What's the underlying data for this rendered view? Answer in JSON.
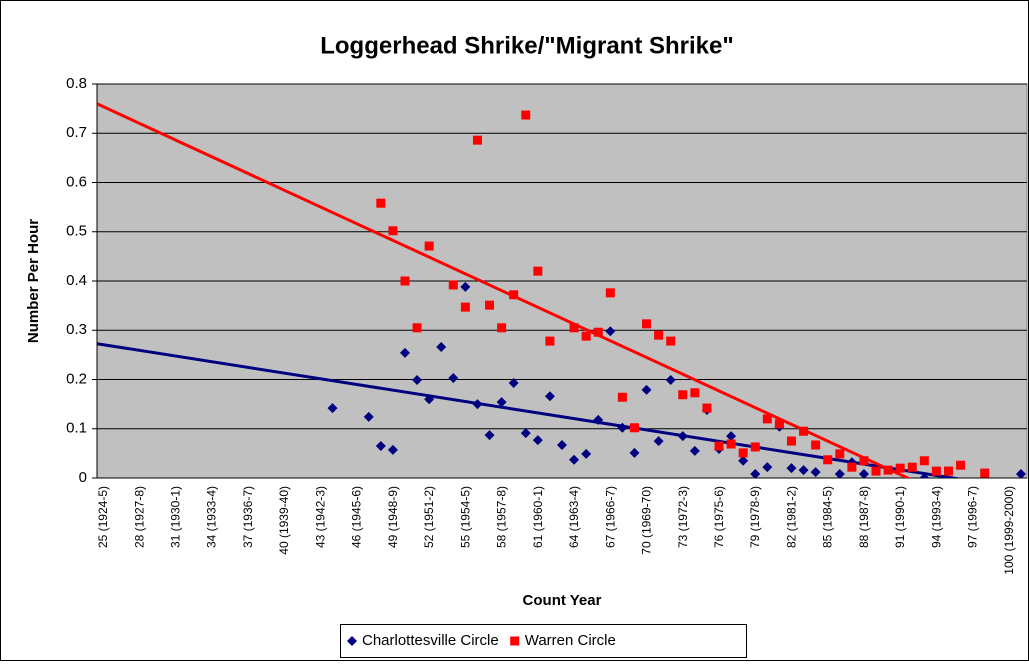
{
  "chart_data": {
    "type": "scatter",
    "title": "Loggerhead  Shrike/\"Migrant Shrike\"",
    "x_label": "Count Year",
    "y_label": "Number Per Hour",
    "categories": [
      "25 (1924-5)",
      null,
      null,
      "28 (1927-8)",
      null,
      null,
      "31 (1930-1)",
      null,
      null,
      "34 (1933-4)",
      null,
      null,
      "37 (1936-7)",
      null,
      null,
      "40 (1939-40)",
      null,
      null,
      "43 (1942-3)",
      null,
      null,
      "46 (1945-6)",
      null,
      null,
      "49 (1948-9)",
      null,
      null,
      "52 (1951-2)",
      null,
      null,
      "55 (1954-5)",
      null,
      null,
      "58 (1957-8)",
      null,
      null,
      "61 (1960-1)",
      null,
      null,
      "64 (1963-4)",
      null,
      null,
      "67 (1966-7)",
      null,
      null,
      "70 (1969-70)",
      null,
      null,
      "73 (1972-3)",
      null,
      null,
      "76 (1975-6)",
      null,
      null,
      "79 (1978-9)",
      null,
      null,
      "82 (1981-2)",
      null,
      null,
      "85 (1984-5)",
      null,
      null,
      "88 (1987-8)",
      null,
      null,
      "91 (1990-1)",
      null,
      null,
      "94 (1993-4)",
      null,
      null,
      "97 (1996-7)",
      null,
      null,
      "100 (1999-2000)",
      null
    ],
    "series": [
      {
        "name": "Charlottesville Circle",
        "color": "#000080",
        "marker": "diamond",
        "trendline": true,
        "values": [
          null,
          null,
          null,
          null,
          null,
          null,
          null,
          null,
          null,
          null,
          null,
          null,
          null,
          null,
          null,
          null,
          null,
          null,
          null,
          0.142,
          null,
          null,
          0.124,
          0.065,
          0.057,
          0.254,
          0.199,
          0.16,
          0.266,
          0.203,
          0.388,
          0.15,
          0.087,
          0.154,
          0.193,
          0.091,
          0.077,
          0.166,
          0.067,
          0.037,
          0.049,
          0.118,
          0.298,
          0.102,
          0.051,
          0.179,
          0.075,
          0.199,
          0.085,
          0.055,
          0.138,
          0.059,
          0.085,
          0.035,
          0.008,
          0.022,
          0.104,
          0.02,
          0.016,
          0.012,
          null,
          0.008,
          0.032,
          0.008,
          null,
          null,
          null,
          null,
          0,
          null,
          null,
          null,
          null,
          null,
          null,
          null,
          0.008
        ]
      },
      {
        "name": "Warren Circle",
        "color": "#ff0000",
        "marker": "square",
        "trendline": true,
        "values": [
          null,
          null,
          null,
          null,
          null,
          null,
          null,
          null,
          null,
          null,
          null,
          null,
          null,
          null,
          null,
          null,
          null,
          null,
          null,
          null,
          null,
          null,
          null,
          0.558,
          0.502,
          0.4,
          0.305,
          0.471,
          null,
          0.392,
          0.347,
          0.686,
          0.351,
          0.305,
          0.372,
          0.737,
          0.42,
          0.278,
          null,
          0.305,
          0.288,
          0.296,
          0.376,
          0.164,
          0.102,
          0.313,
          0.29,
          0.278,
          0.169,
          0.173,
          0.142,
          0.065,
          0.069,
          0.051,
          0.063,
          0.12,
          0.11,
          0.075,
          0.095,
          0.067,
          0.037,
          0.049,
          0.022,
          0.035,
          0.014,
          0.016,
          0.02,
          0.022,
          0.035,
          0.014,
          0.014,
          0.026,
          null,
          0.01,
          null,
          null,
          null
        ]
      }
    ],
    "ylim": [
      0,
      0.8
    ],
    "yticks": [
      0,
      0.1,
      0.2,
      0.3,
      0.4,
      0.5,
      0.6,
      0.7,
      0.8
    ],
    "grid": true,
    "plot_background": "#c0c0c0",
    "legend": "bottom"
  }
}
